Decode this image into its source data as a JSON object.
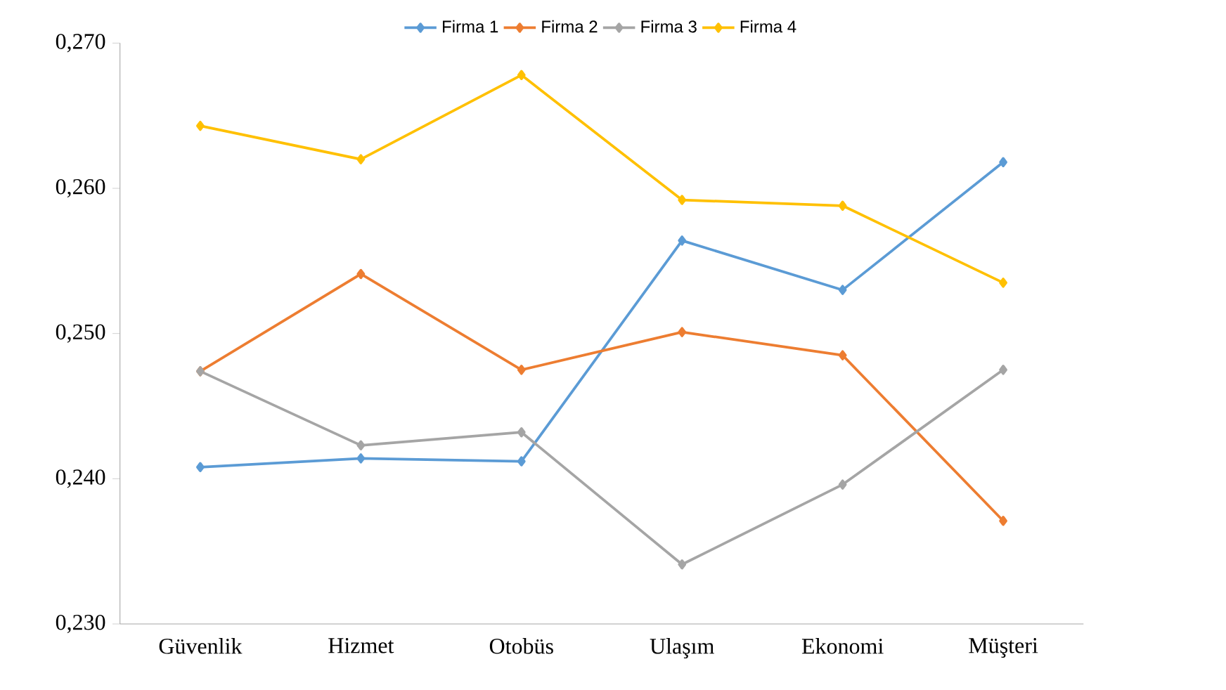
{
  "chart_data": {
    "type": "line",
    "categories": [
      "Güvenlik",
      "Hizmet",
      "Otobüs",
      "Ulaşım",
      "Ekonomi",
      "Müşteri"
    ],
    "series": [
      {
        "name": "Firma 1",
        "color": "#5b9bd5",
        "values": [
          0.2408,
          0.2414,
          0.2412,
          0.2564,
          0.253,
          0.2618
        ]
      },
      {
        "name": "Firma 2",
        "color": "#ed7d31",
        "values": [
          0.2474,
          0.2541,
          0.2475,
          0.2501,
          0.2485,
          0.2371
        ]
      },
      {
        "name": "Firma 3",
        "color": "#a5a5a5",
        "values": [
          0.2474,
          0.2423,
          0.2432,
          0.2341,
          0.2396,
          0.2475
        ]
      },
      {
        "name": "Firma 4",
        "color": "#ffc000",
        "values": [
          0.2643,
          0.262,
          0.2678,
          0.2592,
          0.2588,
          0.2535
        ]
      }
    ],
    "ylim": [
      0.23,
      0.27
    ],
    "yticks": [
      {
        "value": 0.23,
        "label": "0,230"
      },
      {
        "value": 0.24,
        "label": "0,240"
      },
      {
        "value": 0.25,
        "label": "0,250"
      },
      {
        "value": 0.26,
        "label": "0,260"
      },
      {
        "value": 0.27,
        "label": "0,270"
      }
    ],
    "grid": false,
    "legend": "top",
    "marker": "diamond",
    "line_style": "solid"
  }
}
